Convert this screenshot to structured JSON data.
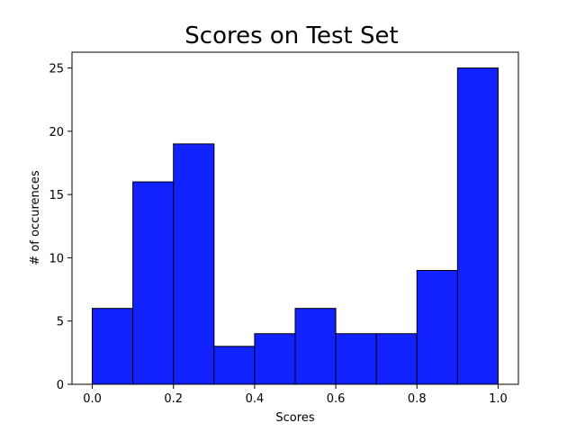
{
  "chart_data": {
    "type": "bar",
    "title": "Scores on Test Set",
    "xlabel": "Scores",
    "ylabel": "# of occurences",
    "bins": [
      {
        "start": 0.0,
        "end": 0.1,
        "value": 6
      },
      {
        "start": 0.1,
        "end": 0.2,
        "value": 16
      },
      {
        "start": 0.2,
        "end": 0.3,
        "value": 19
      },
      {
        "start": 0.3,
        "end": 0.4,
        "value": 3
      },
      {
        "start": 0.4,
        "end": 0.5,
        "value": 4
      },
      {
        "start": 0.5,
        "end": 0.6,
        "value": 6
      },
      {
        "start": 0.6,
        "end": 0.7,
        "value": 4
      },
      {
        "start": 0.7,
        "end": 0.8,
        "value": 4
      },
      {
        "start": 0.8,
        "end": 0.9,
        "value": 9
      },
      {
        "start": 0.9,
        "end": 1.0,
        "value": 25
      }
    ],
    "xlim": [
      -0.05,
      1.05
    ],
    "ylim": [
      0,
      26.25
    ],
    "xticks": [
      "0.0",
      "0.2",
      "0.4",
      "0.6",
      "0.8",
      "1.0"
    ],
    "yticks": [
      "0",
      "5",
      "10",
      "15",
      "20",
      "25"
    ],
    "grid": false,
    "bar_color": "#1122ff",
    "edge_color": "#000000"
  }
}
